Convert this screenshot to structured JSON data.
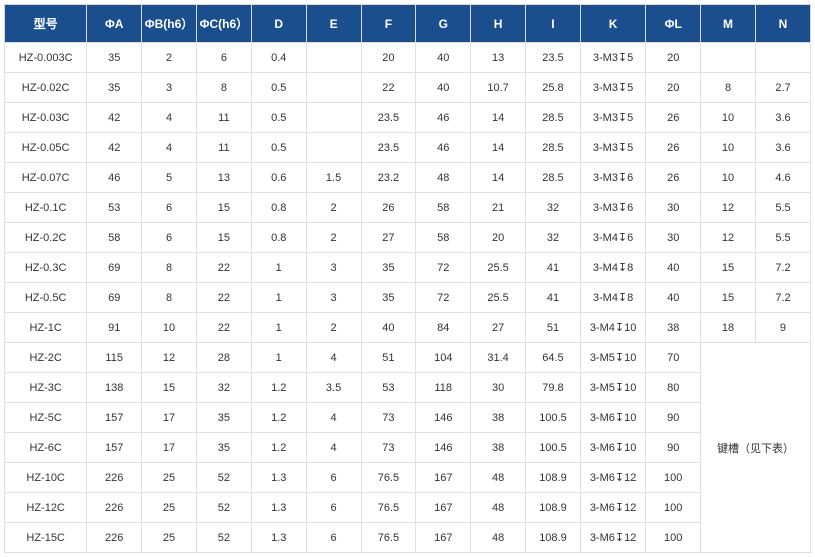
{
  "table": {
    "header_bg": "#1b4e8c",
    "header_fg": "#ffffff",
    "border_color": "#e0e0e0",
    "cell_fg": "#333333",
    "font_size_header": 12,
    "font_size_cell": 11,
    "columns": [
      "型号",
      "ΦA",
      "ΦB(h6）",
      "ΦC(h6）",
      "D",
      "E",
      "F",
      "G",
      "H",
      "I",
      "K",
      "ΦL",
      "M",
      "N"
    ],
    "merged_note": "键槽（见下表）",
    "rows": [
      {
        "model": "HZ-0.003C",
        "A": "35",
        "B": "2",
        "C": "6",
        "D": "0.4",
        "E": "",
        "F": "20",
        "G": "40",
        "H": "13",
        "I": "23.5",
        "K": "3-M3↧5",
        "L": "20",
        "M": "",
        "N": ""
      },
      {
        "model": "HZ-0.02C",
        "A": "35",
        "B": "3",
        "C": "8",
        "D": "0.5",
        "E": "",
        "F": "22",
        "G": "40",
        "H": "10.7",
        "I": "25.8",
        "K": "3-M3↧5",
        "L": "20",
        "M": "8",
        "N": "2.7"
      },
      {
        "model": "HZ-0.03C",
        "A": "42",
        "B": "4",
        "C": "11",
        "D": "0.5",
        "E": "",
        "F": "23.5",
        "G": "46",
        "H": "14",
        "I": "28.5",
        "K": "3-M3↧5",
        "L": "26",
        "M": "10",
        "N": "3.6"
      },
      {
        "model": "HZ-0.05C",
        "A": "42",
        "B": "4",
        "C": "11",
        "D": "0.5",
        "E": "",
        "F": "23.5",
        "G": "46",
        "H": "14",
        "I": "28.5",
        "K": "3-M3↧5",
        "L": "26",
        "M": "10",
        "N": "3.6"
      },
      {
        "model": "HZ-0.07C",
        "A": "46",
        "B": "5",
        "C": "13",
        "D": "0.6",
        "E": "1.5",
        "F": "23.2",
        "G": "48",
        "H": "14",
        "I": "28.5",
        "K": "3-M3↧6",
        "L": "26",
        "M": "10",
        "N": "4.6"
      },
      {
        "model": "HZ-0.1C",
        "A": "53",
        "B": "6",
        "C": "15",
        "D": "0.8",
        "E": "2",
        "F": "26",
        "G": "58",
        "H": "21",
        "I": "32",
        "K": "3-M3↧6",
        "L": "30",
        "M": "12",
        "N": "5.5"
      },
      {
        "model": "HZ-0.2C",
        "A": "58",
        "B": "6",
        "C": "15",
        "D": "0.8",
        "E": "2",
        "F": "27",
        "G": "58",
        "H": "20",
        "I": "32",
        "K": "3-M4↧6",
        "L": "30",
        "M": "12",
        "N": "5.5"
      },
      {
        "model": "HZ-0.3C",
        "A": "69",
        "B": "8",
        "C": "22",
        "D": "1",
        "E": "3",
        "F": "35",
        "G": "72",
        "H": "25.5",
        "I": "41",
        "K": "3-M4↧8",
        "L": "40",
        "M": "15",
        "N": "7.2"
      },
      {
        "model": "HZ-0.5C",
        "A": "69",
        "B": "8",
        "C": "22",
        "D": "1",
        "E": "3",
        "F": "35",
        "G": "72",
        "H": "25.5",
        "I": "41",
        "K": "3-M4↧8",
        "L": "40",
        "M": "15",
        "N": "7.2"
      },
      {
        "model": "HZ-1C",
        "A": "91",
        "B": "10",
        "C": "22",
        "D": "1",
        "E": "2",
        "F": "40",
        "G": "84",
        "H": "27",
        "I": "51",
        "K": "3-M4↧10",
        "L": "38",
        "M": "18",
        "N": "9"
      },
      {
        "model": "HZ-2C",
        "A": "115",
        "B": "12",
        "C": "28",
        "D": "1",
        "E": "4",
        "F": "51",
        "G": "104",
        "H": "31.4",
        "I": "64.5",
        "K": "3-M5↧10",
        "L": "70"
      },
      {
        "model": "HZ-3C",
        "A": "138",
        "B": "15",
        "C": "32",
        "D": "1.2",
        "E": "3.5",
        "F": "53",
        "G": "118",
        "H": "30",
        "I": "79.8",
        "K": "3-M5↧10",
        "L": "80"
      },
      {
        "model": "HZ-5C",
        "A": "157",
        "B": "17",
        "C": "35",
        "D": "1.2",
        "E": "4",
        "F": "73",
        "G": "146",
        "H": "38",
        "I": "100.5",
        "K": "3-M6↧10",
        "L": "90"
      },
      {
        "model": "HZ-6C",
        "A": "157",
        "B": "17",
        "C": "35",
        "D": "1.2",
        "E": "4",
        "F": "73",
        "G": "146",
        "H": "38",
        "I": "100.5",
        "K": "3-M6↧10",
        "L": "90"
      },
      {
        "model": "HZ-10C",
        "A": "226",
        "B": "25",
        "C": "52",
        "D": "1.3",
        "E": "6",
        "F": "76.5",
        "G": "167",
        "H": "48",
        "I": "108.9",
        "K": "3-M6↧12",
        "L": "100"
      },
      {
        "model": "HZ-12C",
        "A": "226",
        "B": "25",
        "C": "52",
        "D": "1.3",
        "E": "6",
        "F": "76.5",
        "G": "167",
        "H": "48",
        "I": "108.9",
        "K": "3-M6↧12",
        "L": "100"
      },
      {
        "model": "HZ-15C",
        "A": "226",
        "B": "25",
        "C": "52",
        "D": "1.3",
        "E": "6",
        "F": "76.5",
        "G": "167",
        "H": "48",
        "I": "108.9",
        "K": "3-M6↧12",
        "L": "100"
      }
    ]
  }
}
